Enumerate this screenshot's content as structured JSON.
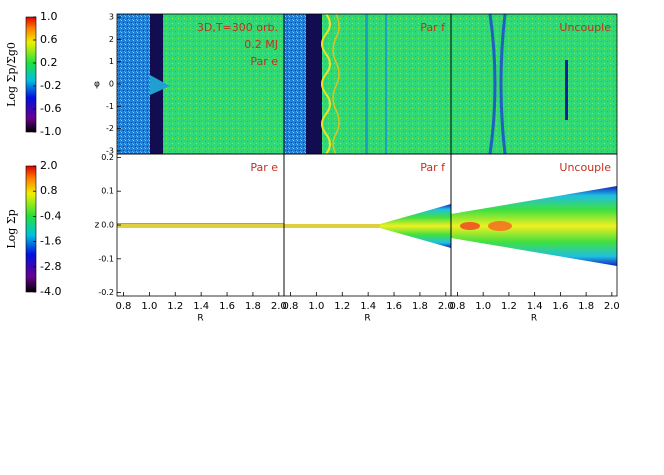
{
  "colorbars": [
    {
      "label": "Log Σp/Σg0",
      "lim": [
        -1,
        1
      ],
      "ticks": [
        {
          "value": 1,
          "label": "1.0"
        },
        0.6,
        0.2,
        -0.2,
        -0.6,
        {
          "value": -1,
          "label": "-1.0"
        }
      ]
    },
    {
      "label": "Log Σp",
      "lim": [
        -4,
        2
      ],
      "ticks": [
        {
          "value": 2,
          "label": "2.0"
        },
        -0.4,
        -1.6,
        -2.8,
        {
          "value": -4,
          "label": "-4.0"
        },
        0.8
      ]
    }
  ],
  "chart_data": [
    {
      "type": "heatmap",
      "xlim": [
        0.75,
        2.04
      ],
      "ylim": [
        -3.14,
        3.14
      ],
      "ylabel": "φ",
      "yticks": [
        -3,
        -2,
        -1,
        0,
        1,
        2,
        3
      ],
      "annotations": [
        "3D,T=300 orb.",
        "0.2 MJ",
        "Par e"
      ]
    },
    {
      "type": "heatmap",
      "xlim": [
        0.75,
        2.04
      ],
      "ylim": [
        -3.14,
        3.14
      ],
      "annotations": [
        "Par f"
      ]
    },
    {
      "type": "heatmap",
      "xlim": [
        0.75,
        2.04
      ],
      "ylim": [
        -3.14,
        3.14
      ],
      "annotations": [
        "Uncouple"
      ]
    },
    {
      "type": "heatmap",
      "xlim": [
        0.75,
        2.04
      ],
      "ylim": [
        -0.21,
        0.21
      ],
      "ylabel": "z",
      "xlabel": "R",
      "yticks": [
        -0.2,
        -0.1,
        {
          "value": 0,
          "label": "0.0"
        },
        0.1,
        0.2
      ],
      "xticks": [
        0.8,
        {
          "value": 1,
          "label": "1.0"
        },
        1.2,
        1.4,
        1.6,
        1.8,
        {
          "value": 2,
          "label": "2.0"
        }
      ],
      "annotations": [
        "Par e"
      ]
    },
    {
      "type": "heatmap",
      "xlim": [
        0.75,
        2.04
      ],
      "ylim": [
        -0.21,
        0.21
      ],
      "xlabel": "R",
      "xticks": [
        0.8,
        {
          "value": 1,
          "label": "1.0"
        },
        1.2,
        1.4,
        1.6,
        1.8,
        {
          "value": 2,
          "label": "2.0"
        }
      ],
      "annotations": [
        "Par f"
      ]
    },
    {
      "type": "heatmap",
      "xlim": [
        0.75,
        2.04
      ],
      "ylim": [
        -0.21,
        0.21
      ],
      "xlabel": "R",
      "xticks": [
        0.8,
        {
          "value": 1,
          "label": "1.0"
        },
        1.2,
        1.4,
        1.6,
        1.8,
        {
          "value": 2,
          "label": "2.0"
        }
      ],
      "annotations": [
        "Uncouple"
      ]
    }
  ]
}
